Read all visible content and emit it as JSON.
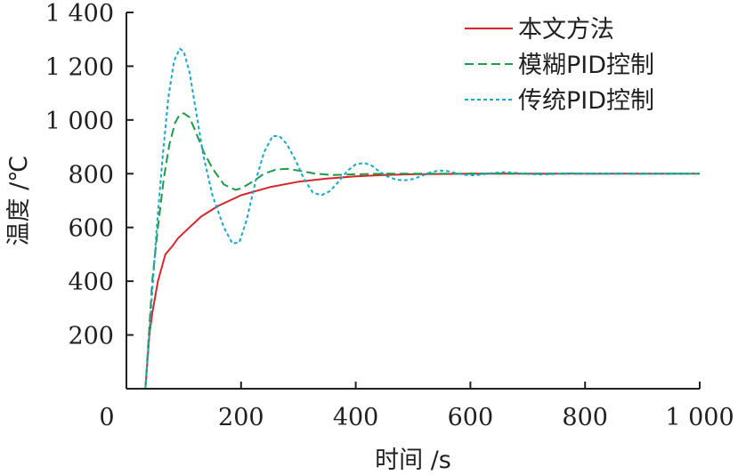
{
  "chart_data": {
    "type": "line",
    "title": "",
    "xlabel": "时间 /s",
    "ylabel": "温度 /℃",
    "xlim": [
      0,
      1000
    ],
    "ylim": [
      0,
      1400
    ],
    "x_ticks": [
      {
        "value": 0,
        "label": "0"
      },
      {
        "value": 200,
        "label": "200"
      },
      {
        "value": 400,
        "label": "400"
      },
      {
        "value": 600,
        "label": "600"
      },
      {
        "value": 800,
        "label": "800"
      },
      {
        "value": 1000,
        "label": "1 000"
      }
    ],
    "y_ticks": [
      {
        "value": 200,
        "label": "200"
      },
      {
        "value": 400,
        "label": "400"
      },
      {
        "value": 600,
        "label": "600"
      },
      {
        "value": 800,
        "label": "800"
      },
      {
        "value": 1000,
        "label": "1 000"
      },
      {
        "value": 1200,
        "label": "1 200"
      },
      {
        "value": 1400,
        "label": "1 400"
      }
    ],
    "grid": false,
    "legend_position": "top-right",
    "series": [
      {
        "name": "本文方法",
        "color": "#d6262c",
        "dash": "solid",
        "x": [
          33,
          40,
          45,
          55,
          68,
          80,
          90,
          110,
          130,
          160,
          200,
          250,
          300,
          350,
          400,
          450,
          500,
          600,
          700,
          800,
          900,
          1000
        ],
        "y": [
          0,
          200,
          280,
          400,
          500,
          530,
          560,
          600,
          640,
          680,
          720,
          750,
          770,
          782,
          790,
          795,
          798,
          800,
          800,
          800,
          800,
          800
        ]
      },
      {
        "name": "模糊PID控制",
        "color": "#1f9a4a",
        "dash": "dashed",
        "x": [
          33,
          45,
          55,
          65,
          75,
          85,
          93,
          100,
          110,
          120,
          135,
          150,
          170,
          190,
          200,
          220,
          240,
          260,
          280,
          300,
          330,
          360,
          400,
          450,
          500,
          600,
          700,
          800,
          900,
          1000
        ],
        "y": [
          0,
          400,
          600,
          780,
          910,
          990,
          1020,
          1025,
          1010,
          960,
          880,
          820,
          760,
          740,
          745,
          770,
          800,
          815,
          818,
          812,
          800,
          795,
          798,
          800,
          800,
          800,
          800,
          800,
          800,
          800
        ]
      },
      {
        "name": "传统PID控制",
        "color": "#1aa7c8",
        "dash": "dotted",
        "x": [
          33,
          43,
          53,
          63,
          73,
          83,
          93,
          100,
          110,
          120,
          135,
          150,
          170,
          185,
          197,
          210,
          225,
          240,
          255,
          267,
          280,
          295,
          310,
          325,
          340,
          355,
          370,
          385,
          400,
          415,
          428,
          440,
          455,
          470,
          485,
          500,
          515,
          530,
          545,
          560,
          575,
          590,
          605,
          620,
          640,
          660,
          680,
          700,
          720,
          740,
          760,
          780,
          800,
          820,
          840,
          860,
          880,
          900,
          920,
          940,
          960,
          980,
          1000
        ],
        "y": [
          0,
          300,
          600,
          860,
          1080,
          1220,
          1265,
          1255,
          1180,
          1050,
          860,
          720,
          600,
          540,
          545,
          630,
          770,
          880,
          940,
          940,
          910,
          850,
          780,
          730,
          720,
          735,
          770,
          810,
          835,
          840,
          830,
          810,
          790,
          778,
          775,
          780,
          792,
          805,
          812,
          810,
          802,
          796,
          794,
          797,
          803,
          806,
          803,
          799,
          797,
          798,
          801,
          802,
          800,
          799,
          800,
          801,
          800,
          799,
          800,
          800,
          800,
          800,
          800
        ]
      }
    ]
  }
}
